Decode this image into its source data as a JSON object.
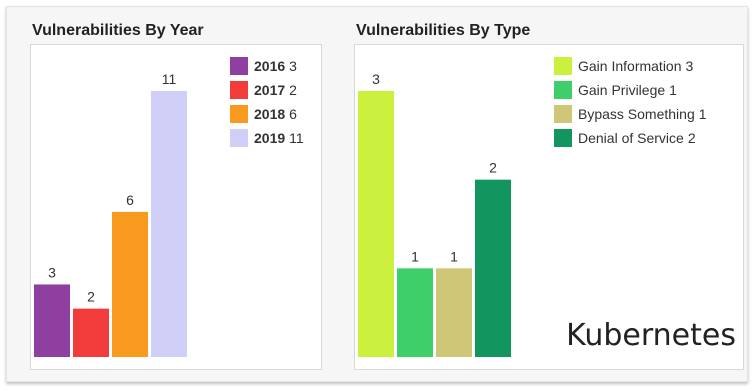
{
  "chart_data": [
    {
      "type": "bar",
      "title": "Vulnerabilities By Year",
      "xlabel": "",
      "ylabel": "",
      "ylim": [
        0,
        11
      ],
      "grid": false,
      "legend_position": "top-right",
      "categories": [
        "2016",
        "2017",
        "2018",
        "2019"
      ],
      "values": [
        3,
        2,
        6,
        11
      ],
      "data_labels": [
        "3",
        "2",
        "6",
        "11"
      ],
      "colors": [
        "#8e3fa0",
        "#f23b3b",
        "#f79a1e",
        "#cfcff7"
      ],
      "legend": [
        {
          "name": "2016",
          "value": "3"
        },
        {
          "name": "2017",
          "value": "2"
        },
        {
          "name": "2018",
          "value": "6"
        },
        {
          "name": "2019",
          "value": "11"
        }
      ]
    },
    {
      "type": "bar",
      "title": "Vulnerabilities By Type",
      "xlabel": "",
      "ylabel": "",
      "ylim": [
        0,
        3
      ],
      "grid": false,
      "legend_position": "top-right",
      "categories": [
        "Gain Information",
        "Gain Privilege",
        "Bypass Something",
        "Denial of Service"
      ],
      "values": [
        3,
        1,
        1,
        2
      ],
      "data_labels": [
        "3",
        "1",
        "1",
        "2"
      ],
      "colors": [
        "#ccf03e",
        "#3fcf6a",
        "#cfc678",
        "#12955e"
      ],
      "legend": [
        {
          "name": "Gain Information",
          "value": "3"
        },
        {
          "name": "Gain Privilege",
          "value": "1"
        },
        {
          "name": "Bypass Something",
          "value": "1"
        },
        {
          "name": "Denial of Service",
          "value": "2"
        }
      ]
    }
  ],
  "watermark": "Kubernetes"
}
